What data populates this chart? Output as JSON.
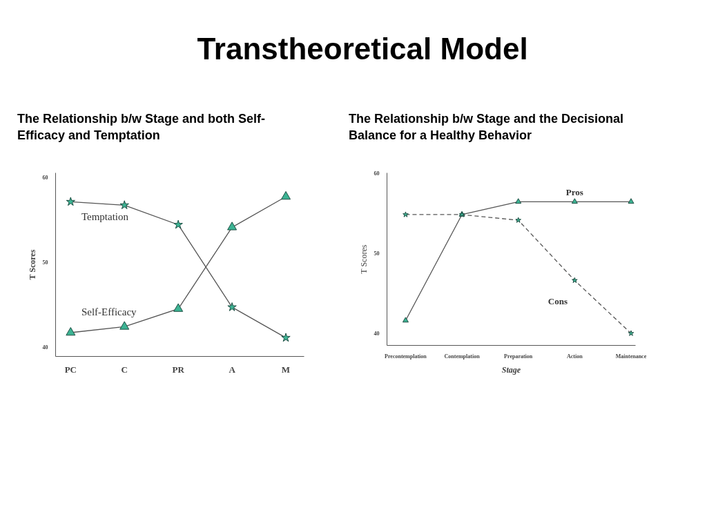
{
  "chart_data": [
    {
      "type": "line",
      "title": "Transtheoretical Model",
      "subtitle": "The Relationship b/w  Stage and both Self-Efficacy and Temptation",
      "ylabel": "T Scores",
      "categories": [
        "PC",
        "C",
        "PR",
        "A",
        "M"
      ],
      "ylim": [
        38.9,
        60.5
      ],
      "yticks": [
        40,
        50,
        60
      ],
      "grid": false,
      "series": [
        {
          "name": "Temptation",
          "color": "#555555",
          "marker": "star",
          "line_style": "solid",
          "values": [
            57.1,
            56.7,
            54.4,
            44.7,
            41.1
          ]
        },
        {
          "name": "Self-Efficacy",
          "color": "#555555",
          "marker": "triangle",
          "line_style": "solid",
          "values": [
            41.7,
            42.4,
            44.5,
            54.1,
            57.7
          ]
        }
      ]
    },
    {
      "type": "line",
      "subtitle": "The Relationship b/w Stage and the Decisional Balance for a Healthy Behavior",
      "ylabel": "T Scores",
      "xlabel": "Stage",
      "categories": [
        "Precontemplation",
        "Contemplation",
        "Preparation",
        "Action",
        "Maintenance"
      ],
      "ylim": [
        38.5,
        60
      ],
      "yticks": [
        40,
        50,
        60
      ],
      "grid": false,
      "series": [
        {
          "name": "Pros",
          "color": "#555555",
          "marker": "triangle",
          "line_style": "solid",
          "values": [
            41.6,
            54.8,
            56.4,
            56.4,
            56.4
          ]
        },
        {
          "name": "Cons",
          "color": "#555555",
          "marker": "star",
          "line_style": "dashed",
          "values": [
            54.8,
            54.8,
            54.1,
            46.6,
            40.0
          ]
        }
      ]
    }
  ]
}
